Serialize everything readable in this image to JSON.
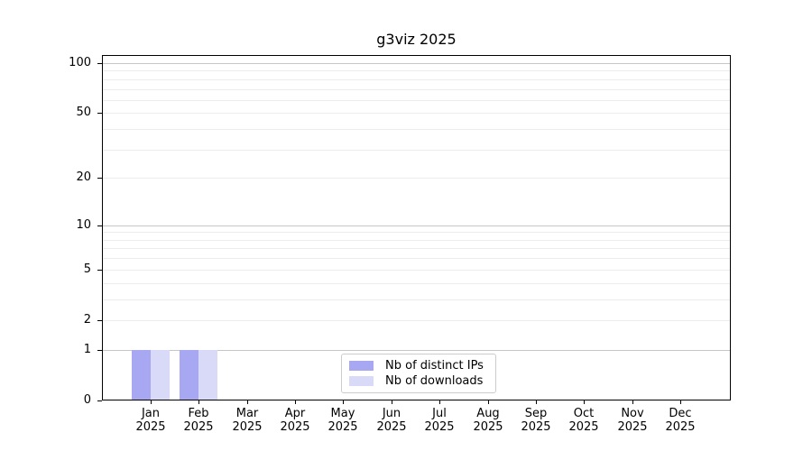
{
  "chart_data": {
    "type": "bar",
    "title": "g3viz 2025",
    "x_months": [
      "Jan",
      "Feb",
      "Mar",
      "Apr",
      "May",
      "Jun",
      "Jul",
      "Aug",
      "Sep",
      "Oct",
      "Nov",
      "Dec"
    ],
    "x_year": "2025",
    "series": [
      {
        "name": "Nb of distinct IPs",
        "color": "#a7a7f2",
        "values": [
          1,
          1,
          0,
          0,
          0,
          0,
          0,
          0,
          0,
          0,
          0,
          0
        ]
      },
      {
        "name": "Nb of downloads",
        "color": "#d9d9f8",
        "values": [
          1,
          1,
          0,
          0,
          0,
          0,
          0,
          0,
          0,
          0,
          0,
          0
        ]
      }
    ],
    "y_scale": "log10(1+value)",
    "y_tick_values": [
      0,
      1,
      2,
      5,
      10,
      20,
      50,
      100
    ],
    "y_tick_labels": [
      "0",
      "1",
      "2",
      "5",
      "10",
      "20",
      "50",
      "100"
    ],
    "y_minor_grid_values": [
      2,
      3,
      4,
      5,
      6,
      7,
      8,
      9,
      20,
      30,
      40,
      50,
      60,
      70,
      80,
      90
    ],
    "y_major_grid_values": [
      1,
      10,
      100
    ],
    "ylim": [
      0,
      112
    ],
    "grid": "horizontal",
    "legend_position": "inside-bottom-center"
  },
  "colors": {
    "background": "#ffffff",
    "axis": "#000000",
    "grid_minor": "#ececec",
    "grid_major": "#c6c6c6",
    "legend_border": "#cccccc",
    "bar_distinct_ips": "#a7a7f2",
    "bar_downloads": "#d9d9f8"
  }
}
